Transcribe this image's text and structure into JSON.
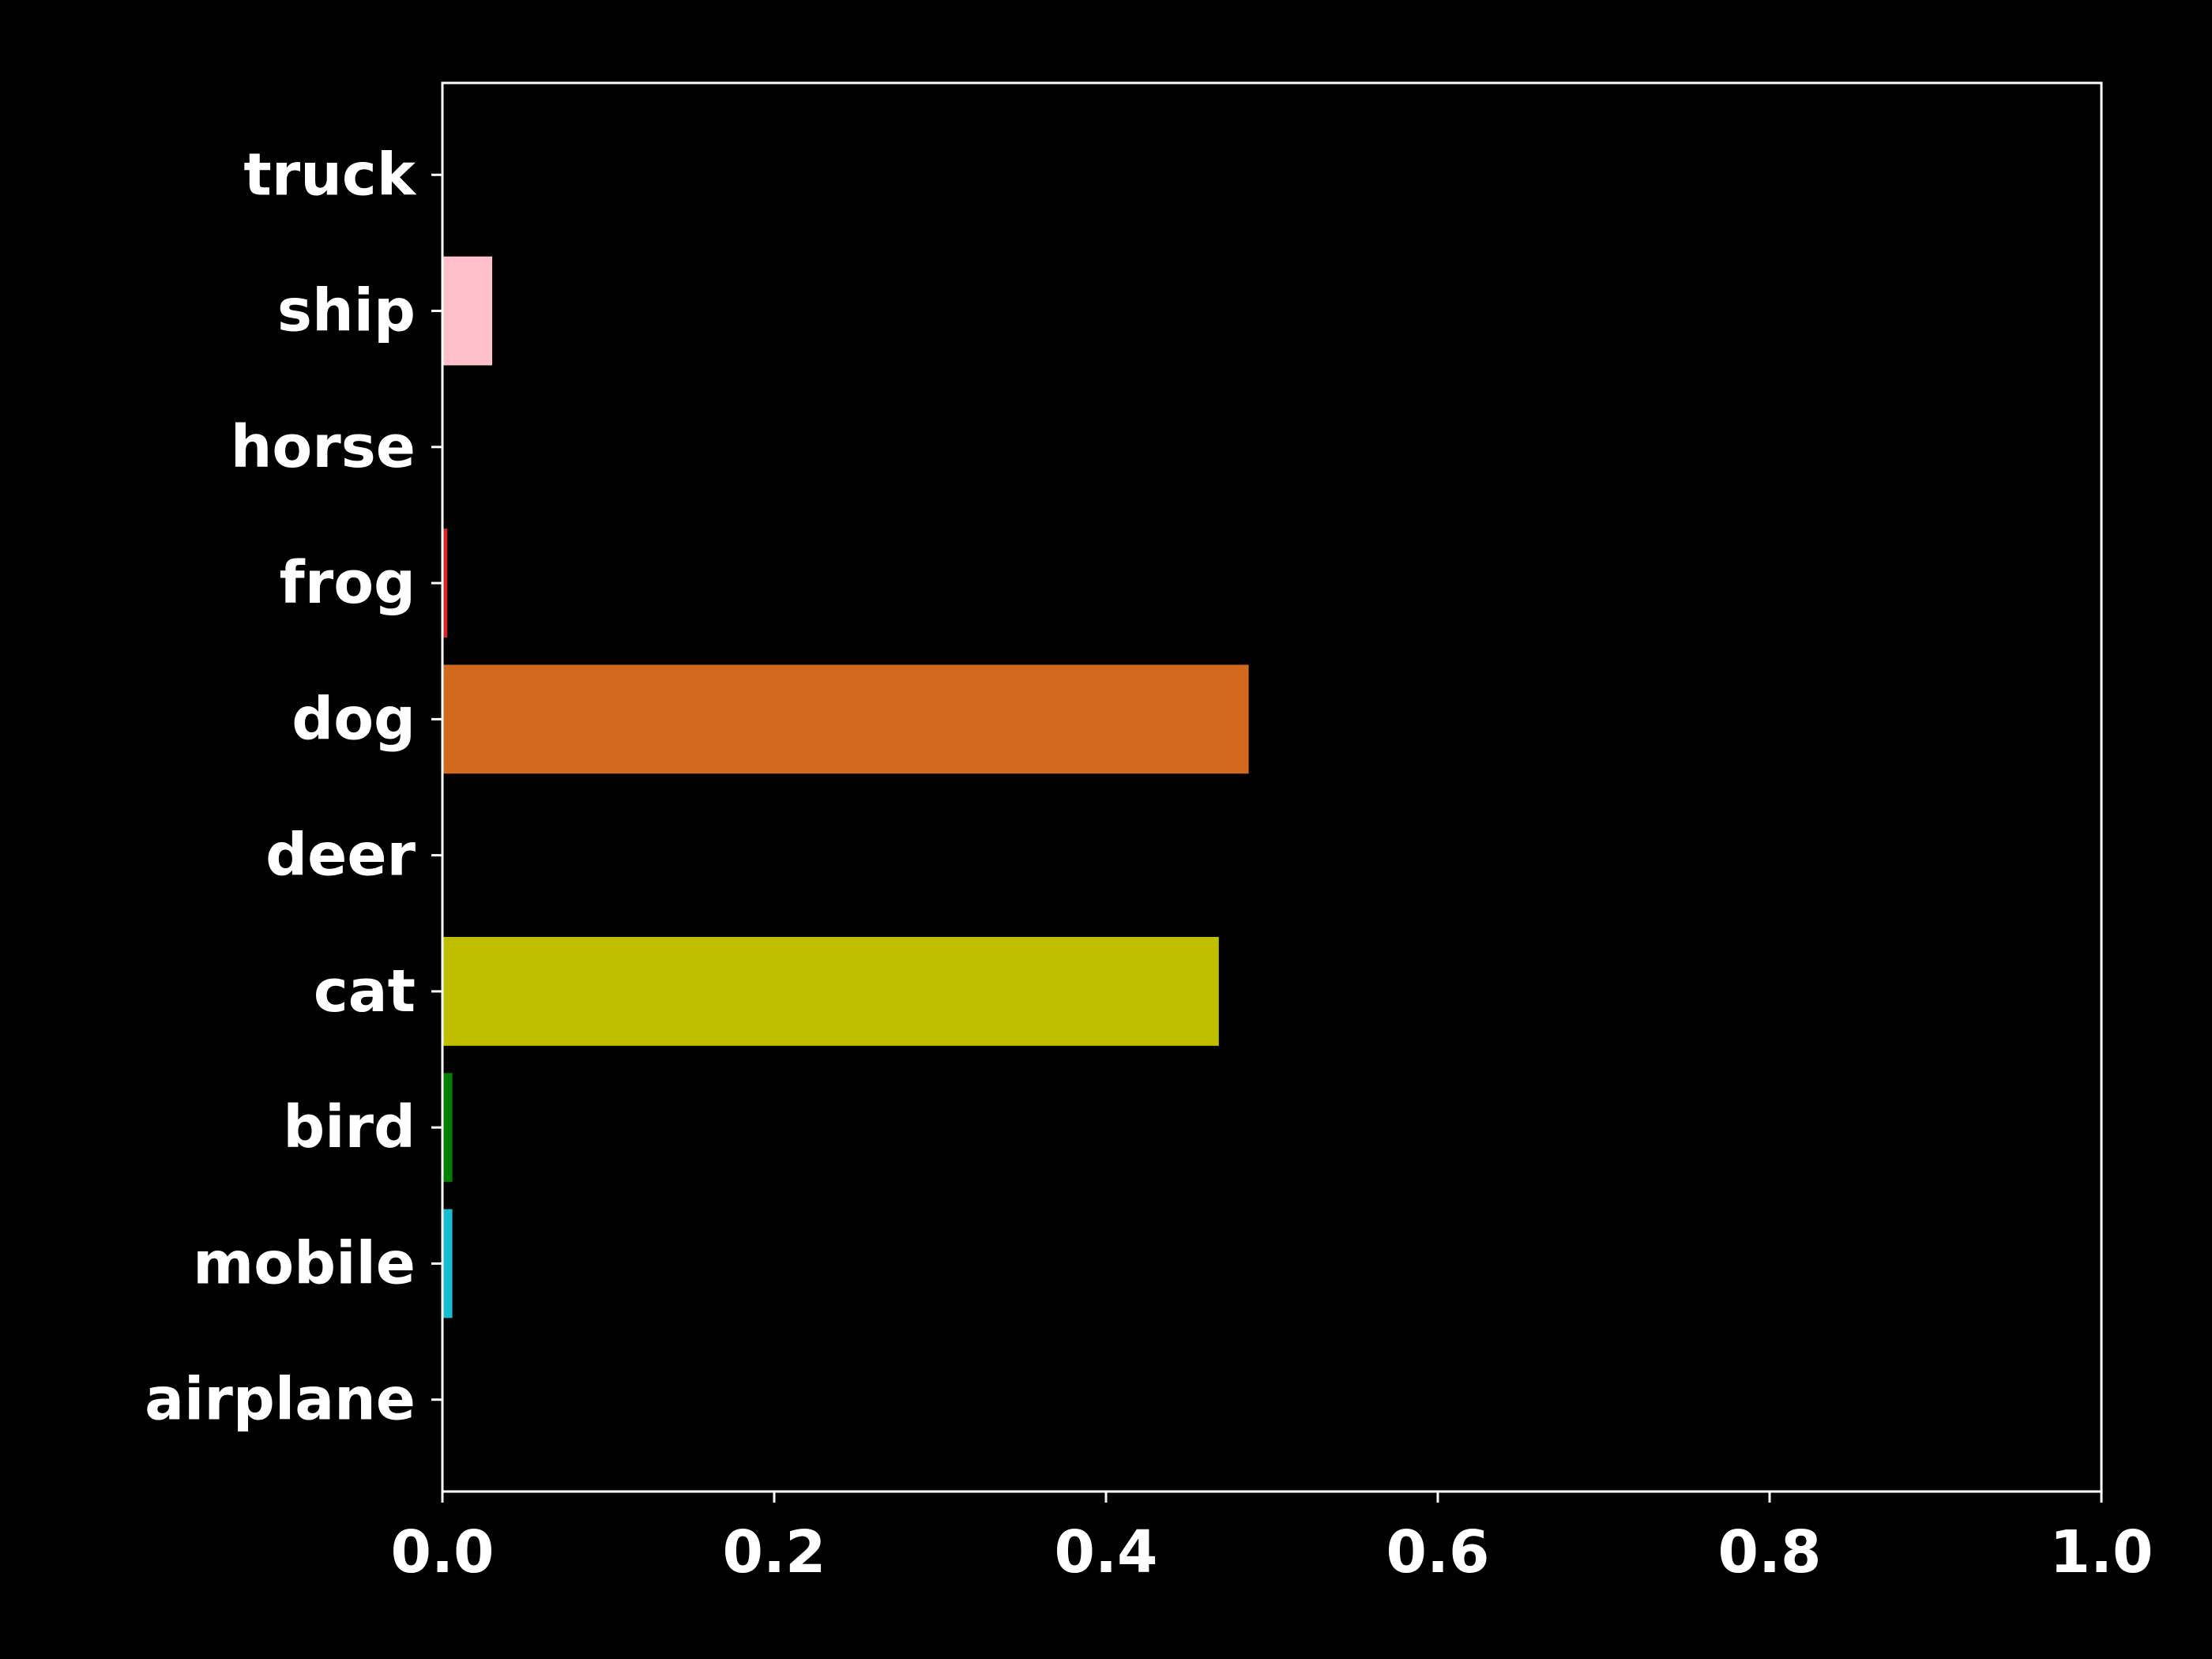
{
  "chart_data": {
    "type": "bar",
    "orientation": "horizontal",
    "categories": [
      "airplane",
      "mobile",
      "bird",
      "cat",
      "deer",
      "dog",
      "frog",
      "horse",
      "ship",
      "truck"
    ],
    "values": [
      0.0,
      0.006,
      0.006,
      0.468,
      0.0,
      0.486,
      0.003,
      0.0,
      0.03,
      0.0
    ],
    "colors": [
      "#1f77b4",
      "#17becf",
      "#008000",
      "#bfbf00",
      "#8c564b",
      "#d2691e",
      "#d62728",
      "#9467bd",
      "#ffc0cb",
      "#7f7f7f"
    ],
    "xlim": [
      0,
      1.0
    ],
    "xticks": [
      "0.0",
      "0.2",
      "0.4",
      "0.6",
      "0.8",
      "1.0"
    ],
    "title": "",
    "xlabel": "",
    "ylabel": "",
    "grid": false,
    "legend": "none",
    "background": "#000000",
    "foreground": "#ffffff"
  }
}
